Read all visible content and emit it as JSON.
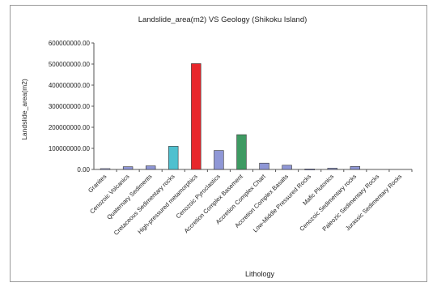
{
  "chart_data": {
    "type": "bar",
    "title": "Landslide_area(m2) VS Geology (Shikoku Island)",
    "xlabel": "Lithology",
    "ylabel": "Landslide_area(m2)",
    "ylim": [
      0,
      600000000
    ],
    "yticks": [
      0,
      100000000,
      200000000,
      300000000,
      400000000,
      500000000,
      600000000
    ],
    "ytick_labels": [
      "0.00",
      "100000000.00",
      "200000000.00",
      "300000000.00",
      "400000000.00",
      "500000000.00",
      "600000000.00"
    ],
    "grid": false,
    "legend": "none",
    "categories": [
      "Granites",
      "Cenozoic Volcanics",
      "Quaternary Sediments",
      "Cretaceous Sedimentary rocks",
      "High-pressured metamorphics",
      "Cenozoic Pyroclastics",
      "Accretion Complex Basement",
      "Accretion Complex Chart",
      "Accretion Complex Basalts",
      "Low-Middle Pressured Rocks",
      "Mafic Plutonics",
      "Cenozoic Sedimentary rocks",
      "Paleozic Sedimentary Rocks",
      "Jurassic Sedimentary Rocks"
    ],
    "values": [
      4000000,
      13000000,
      17000000,
      110000000,
      502000000,
      90000000,
      165000000,
      30000000,
      20000000,
      2000000,
      6000000,
      14000000,
      0,
      0
    ],
    "colors": [
      "#8f97d6",
      "#8f97d6",
      "#8f97d6",
      "#4fc0cf",
      "#e8262b",
      "#8f97d6",
      "#3e9a62",
      "#8f97d6",
      "#8f97d6",
      "#8f97d6",
      "#8f97d6",
      "#8f97d6",
      "#8f97d6",
      "#8f97d6"
    ]
  }
}
